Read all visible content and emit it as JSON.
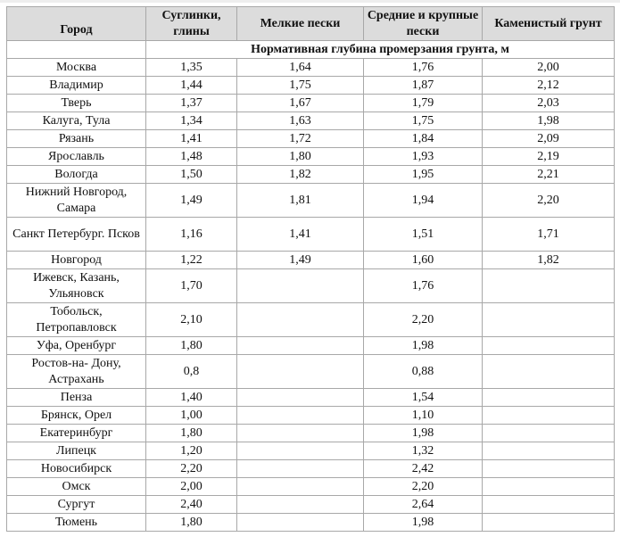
{
  "header": {
    "columns": [
      "Город",
      "Суглинки, глины",
      "Мелкие пески",
      "Средние и крупные пески",
      "Каменистый грунт"
    ],
    "subheader": "Нормативная глубина промерзания грунта, м"
  },
  "rows": [
    {
      "city": "Москва",
      "values": [
        "1,35",
        "1,64",
        "1,76",
        "2,00"
      ]
    },
    {
      "city": "Владимир",
      "values": [
        "1,44",
        "1,75",
        "1,87",
        "2,12"
      ]
    },
    {
      "city": "Тверь",
      "values": [
        "1,37",
        "1,67",
        "1,79",
        "2,03"
      ]
    },
    {
      "city": "Калуга, Тула",
      "values": [
        "1,34",
        "1,63",
        "1,75",
        "1,98"
      ]
    },
    {
      "city": "Рязань",
      "values": [
        "1,41",
        "1,72",
        "1,84",
        "2,09"
      ]
    },
    {
      "city": "Ярославль",
      "values": [
        "1,48",
        "1,80",
        "1,93",
        "2,19"
      ]
    },
    {
      "city": "Вологда",
      "values": [
        "1,50",
        "1,82",
        "1,95",
        "2,21"
      ]
    },
    {
      "city": "Нижний Новгород, Самара",
      "values": [
        "1,49",
        "1,81",
        "1,94",
        "2,20"
      ],
      "tall": true
    },
    {
      "city": "Санкт Петербург. Псков",
      "values": [
        "1,16",
        "1,41",
        "1,51",
        "1,71"
      ],
      "tall": true
    },
    {
      "city": "Новгород",
      "values": [
        "1,22",
        "1,49",
        "1,60",
        "1,82"
      ]
    },
    {
      "city": "Ижевск, Казань, Ульяновск",
      "values": [
        "1,70",
        "",
        "1,76",
        ""
      ],
      "tall": true
    },
    {
      "city": "Тобольск, Петропавловск",
      "values": [
        "2,10",
        "",
        "2,20",
        ""
      ],
      "tall": true
    },
    {
      "city": "Уфа, Оренбург",
      "values": [
        "1,80",
        "",
        "1,98",
        ""
      ]
    },
    {
      "city": "Ростов-на- Дону, Астрахань",
      "values": [
        "0,8",
        "",
        "0,88",
        ""
      ],
      "tall": true
    },
    {
      "city": "Пенза",
      "values": [
        "1,40",
        "",
        "1,54",
        ""
      ]
    },
    {
      "city": "Брянск, Орел",
      "values": [
        "1,00",
        "",
        "1,10",
        ""
      ]
    },
    {
      "city": "Екатеринбург",
      "values": [
        "1,80",
        "",
        "1,98",
        ""
      ]
    },
    {
      "city": "Липецк",
      "values": [
        "1,20",
        "",
        "1,32",
        ""
      ]
    },
    {
      "city": "Новосибирск",
      "values": [
        "2,20",
        "",
        "2,42",
        ""
      ]
    },
    {
      "city": "Омск",
      "values": [
        "2,00",
        "",
        "2,20",
        ""
      ]
    },
    {
      "city": "Сургут",
      "values": [
        "2,40",
        "",
        "2,64",
        ""
      ]
    },
    {
      "city": "Тюмень",
      "values": [
        "1,80",
        "",
        "1,98",
        ""
      ]
    }
  ]
}
